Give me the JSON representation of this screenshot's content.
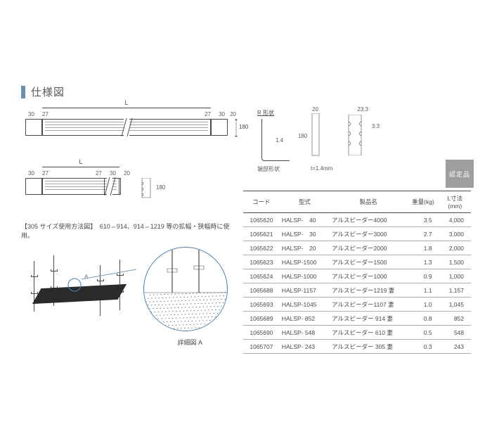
{
  "title": "仕様図",
  "badge": "認定品",
  "usage_note": "【305 サイズ使用方法図】　610⇔914、914⇔1219 等の拡幅・狭幅時に使用。",
  "detail_label": "詳細図 A",
  "letter_A": "A",
  "xsection": {
    "r_label": "R 形状",
    "t_label": "端部形状",
    "thickness": "t=1.4mm",
    "w_top": "20",
    "w_233": "23.3",
    "h_180": "180",
    "h_33": "3.3",
    "r_14": "1.4"
  },
  "dims": {
    "L": "L",
    "d30": "30",
    "d27": "27",
    "d20": "20",
    "d180": "180"
  },
  "columns": [
    "コード",
    "型式",
    "製品名",
    "重量(kg)",
    "L寸法(mm)"
  ],
  "col_widths": [
    "16%",
    "22%",
    "34%",
    "14%",
    "14%"
  ],
  "rows": [
    [
      "1065620",
      "HALSP-　40",
      "アルスピーダー4000",
      "3.5",
      "4,000"
    ],
    [
      "1065621",
      "HALSP-　30",
      "アルスピーダー3000",
      "2.7",
      "3,000"
    ],
    [
      "1065622",
      "HALSP-　20",
      "アルスピーダー2000",
      "1.8",
      "2,000"
    ],
    [
      "1065623",
      "HALSP-1500",
      "アルスピーダー1500",
      "1.3",
      "1,500"
    ],
    [
      "1065624",
      "HALSP-1000",
      "アルスピーダー1000",
      "0.9",
      "1,000"
    ],
    [
      "1065688",
      "HALSP-1157",
      "アルスピーダー1219 妻",
      "1.1",
      "1,157"
    ],
    [
      "1065693",
      "HALSP-1045",
      "アルスピーダー1107 妻",
      "1.0",
      "1,045"
    ],
    [
      "1065689",
      "HALSP- 852",
      "アルスピーダー 914 妻",
      "0.8",
      "852"
    ],
    [
      "1065690",
      "HALSP- 548",
      "アルスピーダー 610 妻",
      "0.5",
      "548"
    ],
    [
      "1065707",
      "HALSP- 243",
      "アルスピーダー 305 妻",
      "0.3",
      "243"
    ]
  ],
  "colors": {
    "accent": "#4f7da8",
    "title_bar": "#6b8fb0",
    "line": "#4a4a4a",
    "badge_bg": "#9e9e9e"
  }
}
